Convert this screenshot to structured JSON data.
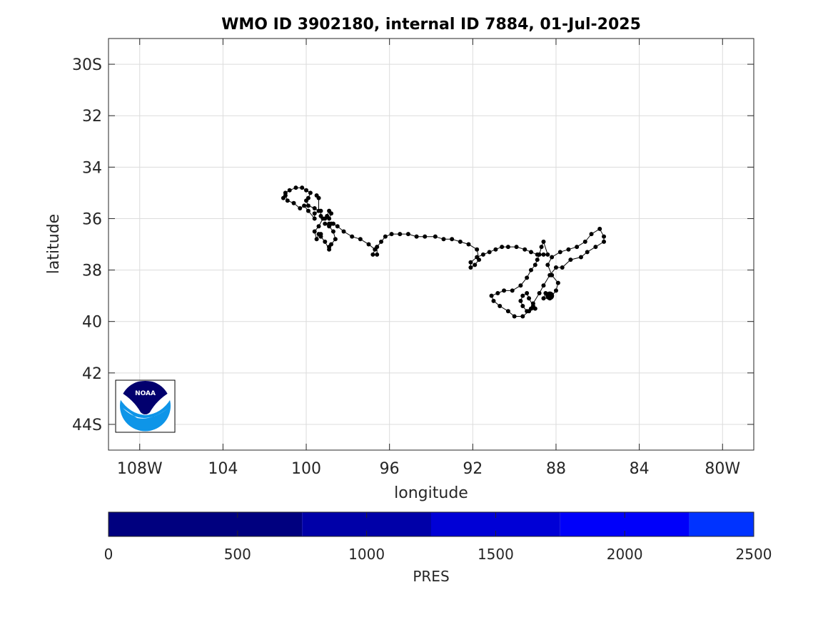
{
  "chart_data": {
    "type": "scatter",
    "title": "WMO ID 3902180, internal ID 7884, 01-Jul-2025",
    "xlabel": "longitude",
    "ylabel": "latitude",
    "xlim": [
      -109.5,
      -78.5
    ],
    "ylim": [
      -45,
      -29
    ],
    "grid": true,
    "x_ticks": [
      {
        "value": -108,
        "label": "108W"
      },
      {
        "value": -104,
        "label": "104"
      },
      {
        "value": -100,
        "label": "100"
      },
      {
        "value": -96,
        "label": "96"
      },
      {
        "value": -92,
        "label": "92"
      },
      {
        "value": -88,
        "label": "88"
      },
      {
        "value": -84,
        "label": "84"
      },
      {
        "value": -80,
        "label": "80W"
      }
    ],
    "y_ticks": [
      {
        "value": -30,
        "label": "30S"
      },
      {
        "value": -32,
        "label": "32"
      },
      {
        "value": -34,
        "label": "34"
      },
      {
        "value": -36,
        "label": "36"
      },
      {
        "value": -38,
        "label": "38"
      },
      {
        "value": -40,
        "label": "40"
      },
      {
        "value": -42,
        "label": "42"
      },
      {
        "value": -44,
        "label": "44S"
      }
    ],
    "track": {
      "x": [
        -88.3,
        -88.5,
        -88.6,
        -88.3,
        -88.0,
        -87.9,
        -88.2,
        -88.4,
        -88.2,
        -87.8,
        -87.4,
        -87.0,
        -86.6,
        -86.3,
        -85.9,
        -85.7,
        -85.7,
        -86.1,
        -86.5,
        -86.8,
        -87.3,
        -87.7,
        -88.0,
        -88.3,
        -88.6,
        -88.8,
        -89.1,
        -89.2,
        -89.4,
        -89.6,
        -89.7,
        -89.6,
        -89.4,
        -89.3,
        -89.1,
        -89.0,
        -89.3,
        -89.6,
        -90.0,
        -90.3,
        -90.7,
        -91.0,
        -91.1,
        -90.8,
        -90.5,
        -90.1,
        -89.7,
        -89.4,
        -89.2,
        -89.0,
        -88.9,
        -88.8,
        -88.7,
        -88.6,
        -88.4,
        -88.6,
        -88.9,
        -89.2,
        -89.5,
        -89.9,
        -90.3,
        -90.6,
        -90.9,
        -91.2,
        -91.5,
        -91.8,
        -92.1,
        -92.1,
        -91.9,
        -91.7,
        -91.8,
        -92.2,
        -92.6,
        -93.0,
        -93.4,
        -93.8,
        -94.3,
        -94.7,
        -95.1,
        -95.5,
        -95.9,
        -96.2,
        -96.4,
        -96.6,
        -96.6,
        -96.8,
        -96.7,
        -97.0,
        -97.4,
        -97.8,
        -98.2,
        -98.5,
        -98.7,
        -98.8,
        -98.9,
        -99.1,
        -98.9,
        -98.7,
        -98.6,
        -98.8,
        -98.9,
        -98.9,
        -99.1,
        -99.3,
        -99.3,
        -99.4,
        -99.5,
        -99.6,
        -99.4,
        -99.2,
        -99.0,
        -98.9,
        -98.8,
        -98.9,
        -99.1,
        -99.3,
        -99.3,
        -99.6,
        -99.6,
        -99.9,
        -100.1,
        -100.3,
        -100.6,
        -100.9,
        -101.0,
        -101.1,
        -101.0,
        -100.8,
        -100.5,
        -100.2,
        -100.0,
        -99.8,
        -99.9,
        -100.0,
        -99.9,
        -99.6,
        -99.4,
        -99.4,
        -99.5
      ],
      "y": [
        -39.0,
        -38.9,
        -39.1,
        -39.1,
        -38.8,
        -38.5,
        -38.2,
        -37.8,
        -37.5,
        -37.3,
        -37.2,
        -37.1,
        -36.9,
        -36.6,
        -36.4,
        -36.7,
        -36.9,
        -37.1,
        -37.3,
        -37.5,
        -37.6,
        -37.9,
        -37.9,
        -38.2,
        -38.6,
        -38.9,
        -39.3,
        -39.5,
        -39.6,
        -39.4,
        -39.2,
        -39.0,
        -38.9,
        -39.1,
        -39.4,
        -39.5,
        -39.6,
        -39.8,
        -39.8,
        -39.6,
        -39.4,
        -39.2,
        -39.0,
        -38.9,
        -38.8,
        -38.8,
        -38.6,
        -38.3,
        -38.0,
        -37.8,
        -37.6,
        -37.4,
        -37.1,
        -36.9,
        -37.4,
        -37.4,
        -37.4,
        -37.3,
        -37.2,
        -37.1,
        -37.1,
        -37.1,
        -37.2,
        -37.3,
        -37.4,
        -37.5,
        -37.7,
        -37.9,
        -37.8,
        -37.6,
        -37.2,
        -37.0,
        -36.9,
        -36.8,
        -36.8,
        -36.7,
        -36.7,
        -36.7,
        -36.6,
        -36.6,
        -36.6,
        -36.7,
        -36.9,
        -37.1,
        -37.4,
        -37.4,
        -37.2,
        -37.0,
        -36.8,
        -36.7,
        -36.5,
        -36.3,
        -36.2,
        -36.2,
        -36.2,
        -36.2,
        -36.3,
        -36.5,
        -36.8,
        -37.0,
        -37.1,
        -37.2,
        -36.9,
        -36.7,
        -36.6,
        -36.6,
        -36.8,
        -36.5,
        -36.3,
        -36.0,
        -35.9,
        -35.7,
        -35.8,
        -36.0,
        -36.0,
        -35.9,
        -35.7,
        -35.8,
        -36.0,
        -35.7,
        -35.5,
        -35.6,
        -35.4,
        -35.3,
        -35.1,
        -35.2,
        -35.0,
        -34.9,
        -34.8,
        -34.8,
        -34.9,
        -35.0,
        -35.2,
        -35.3,
        -35.5,
        -35.6,
        -35.7,
        -35.2,
        -35.1
      ]
    },
    "last_position": {
      "x": -88.3,
      "y": -39.0
    }
  },
  "colorbar": {
    "label": "PRES",
    "range": [
      0,
      2500
    ],
    "ticks": [
      "0",
      "500",
      "1000",
      "1500",
      "2000",
      "2500"
    ],
    "segments": [
      {
        "from": 0,
        "to": 750,
        "color": "#00007F"
      },
      {
        "from": 750,
        "to": 1250,
        "color": "#0000A8"
      },
      {
        "from": 1250,
        "to": 1750,
        "color": "#0000D6"
      },
      {
        "from": 1750,
        "to": 2250,
        "color": "#0000FA"
      },
      {
        "from": 2250,
        "to": 2500,
        "color": "#0033FF"
      }
    ]
  },
  "logo": {
    "text": "NOAA",
    "navy": "#02006E",
    "blue": "#0E95E8"
  },
  "colors": {
    "track": "#000000",
    "grid": "#dcdcdc",
    "axis": "#262626"
  }
}
